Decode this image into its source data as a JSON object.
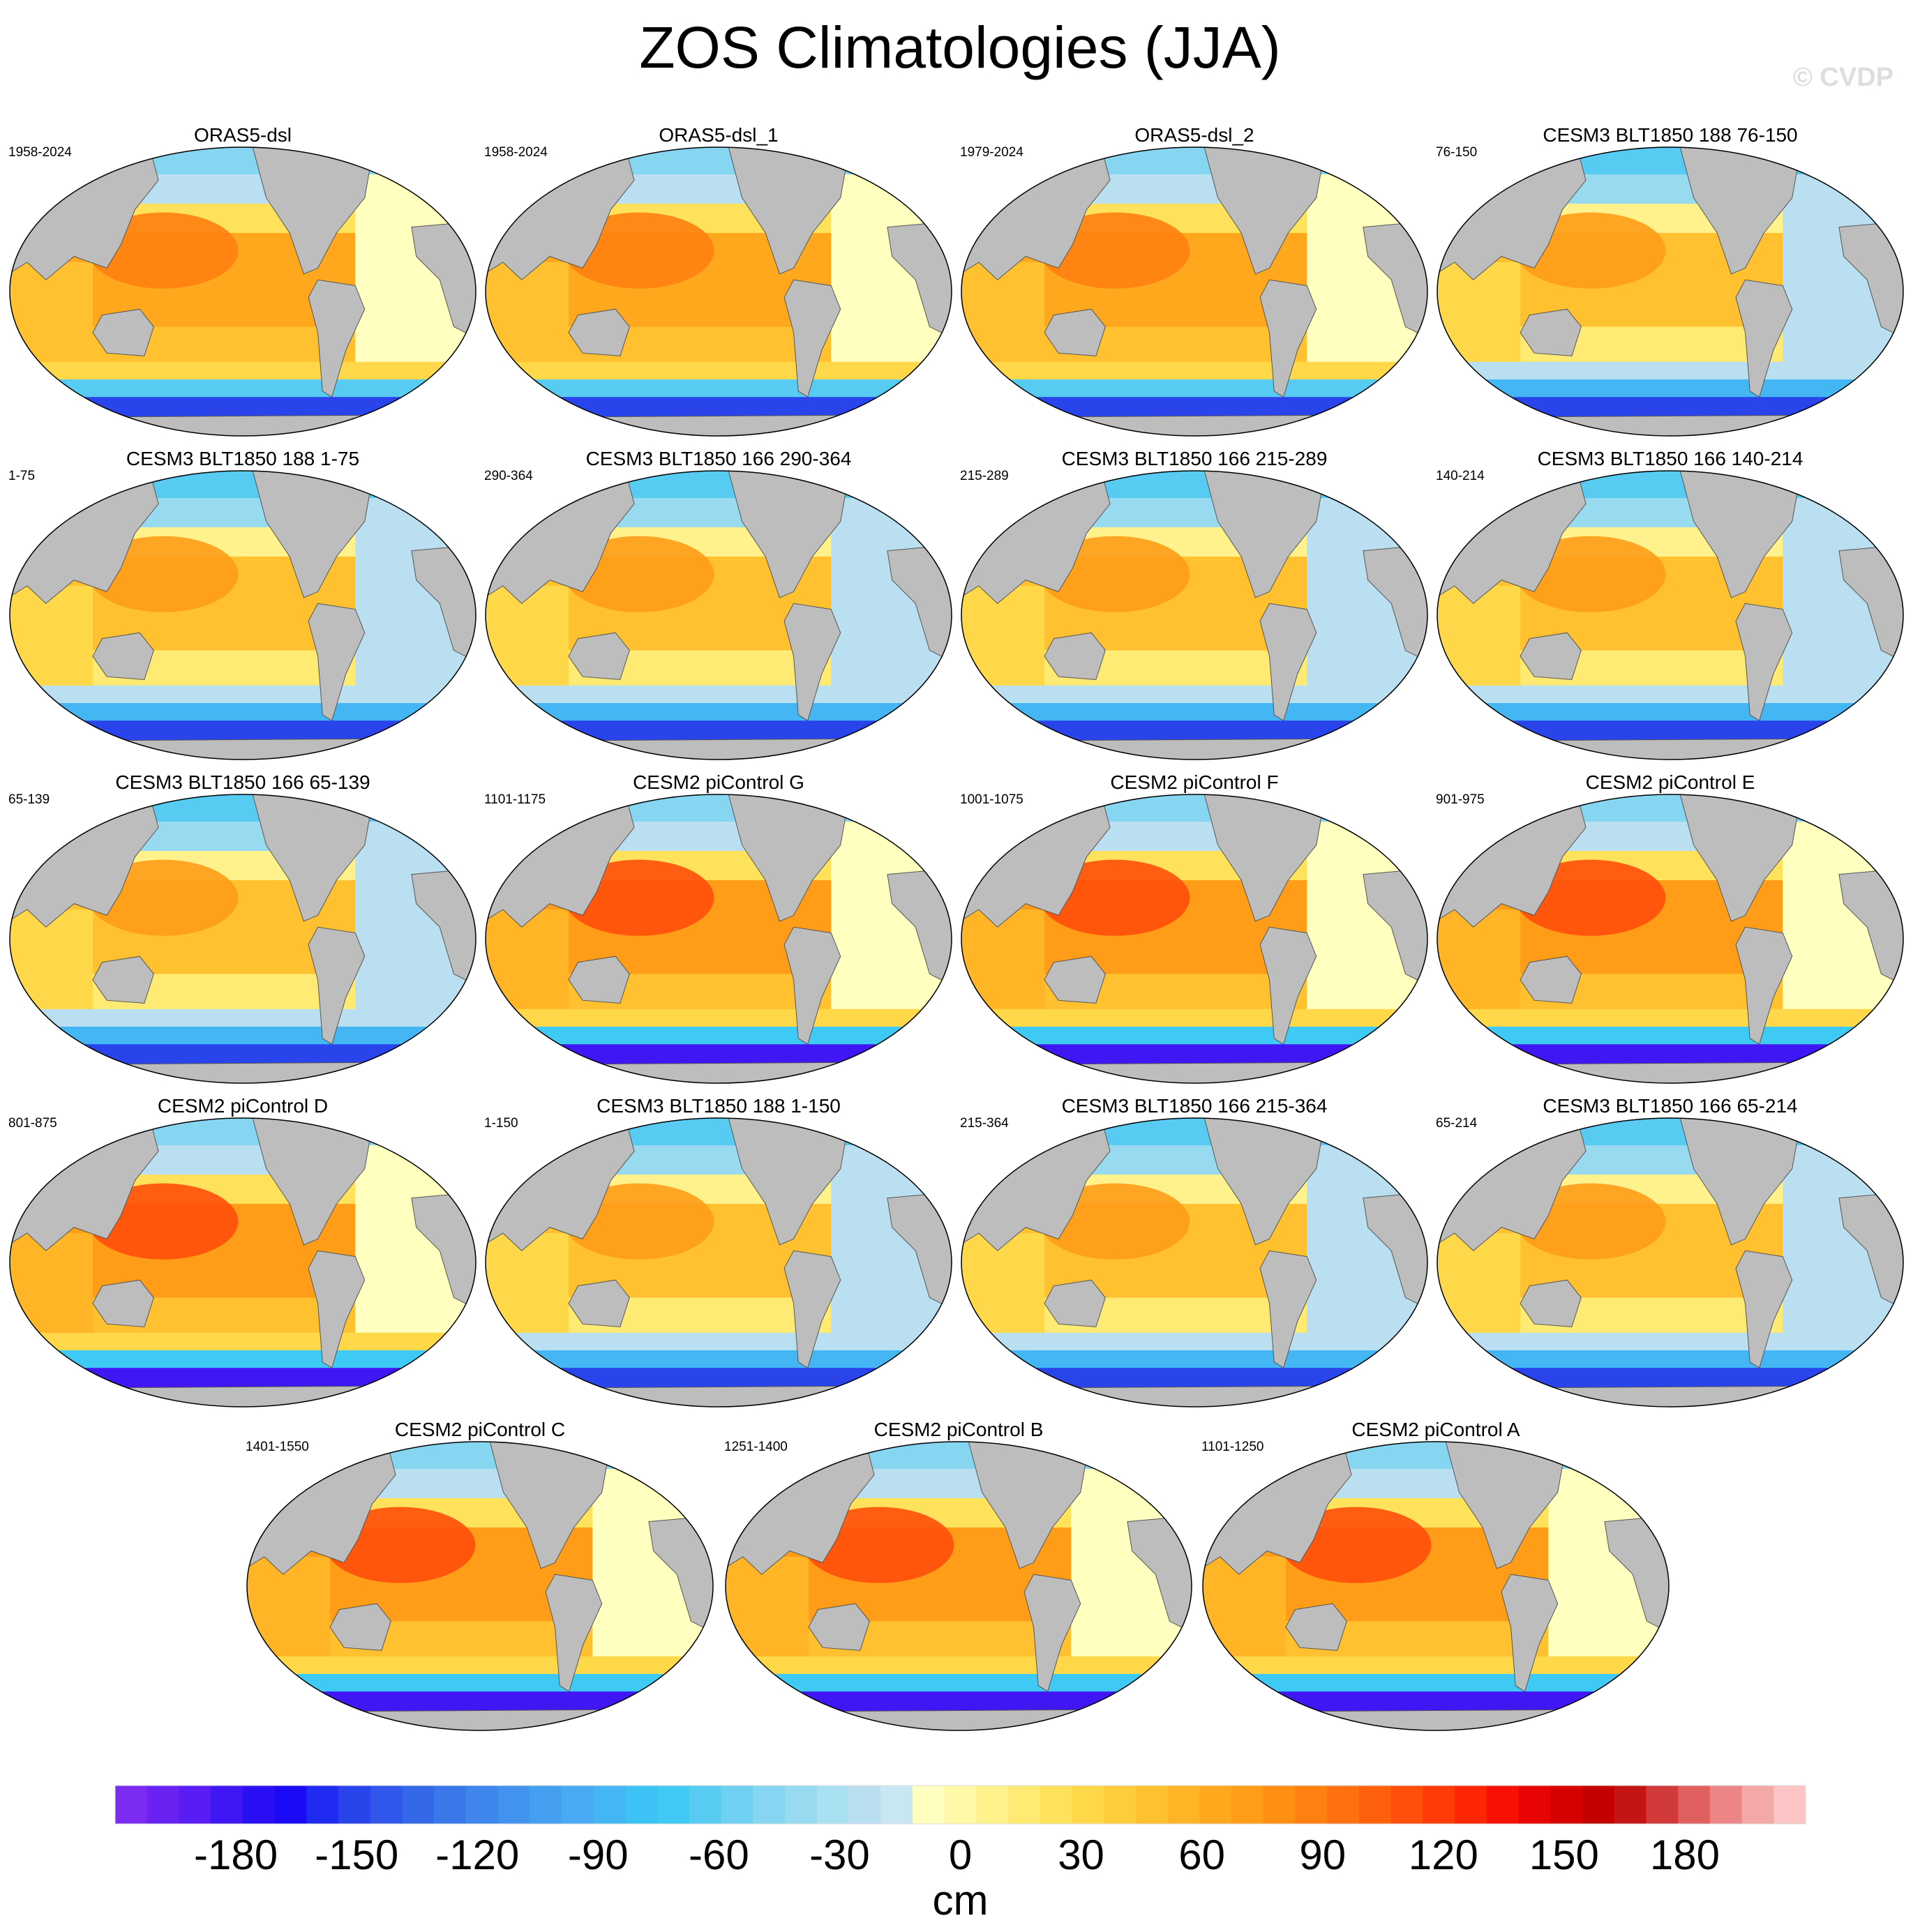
{
  "title": "ZOS Climatologies (JJA)",
  "watermark": "© CVDP",
  "panels": [
    {
      "title": "ORAS5-dsl",
      "years": "1958-2024",
      "variant": "obs"
    },
    {
      "title": "ORAS5-dsl_1",
      "years": "1958-2024",
      "variant": "obs"
    },
    {
      "title": "ORAS5-dsl_2",
      "years": "1979-2024",
      "variant": "obs"
    },
    {
      "title": "CESM3 BLT1850 188 76-150",
      "years": "76-150",
      "variant": "cesm3"
    },
    {
      "title": "CESM3 BLT1850 188 1-75",
      "years": "1-75",
      "variant": "cesm3"
    },
    {
      "title": "CESM3 BLT1850 166 290-364",
      "years": "290-364",
      "variant": "cesm3"
    },
    {
      "title": "CESM3 BLT1850 166 215-289",
      "years": "215-289",
      "variant": "cesm3"
    },
    {
      "title": "CESM3 BLT1850 166 140-214",
      "years": "140-214",
      "variant": "cesm3"
    },
    {
      "title": "CESM3 BLT1850 166 65-139",
      "years": "65-139",
      "variant": "cesm3"
    },
    {
      "title": "CESM2 piControl G",
      "years": "1101-1175",
      "variant": "cesm2"
    },
    {
      "title": "CESM2 piControl F",
      "years": "1001-1075",
      "variant": "cesm2"
    },
    {
      "title": "CESM2 piControl E",
      "years": "901-975",
      "variant": "cesm2"
    },
    {
      "title": "CESM2 piControl D",
      "years": "801-875",
      "variant": "cesm2"
    },
    {
      "title": "CESM3 BLT1850 188 1-150",
      "years": "1-150",
      "variant": "cesm3"
    },
    {
      "title": "CESM3 BLT1850 166 215-364",
      "years": "215-364",
      "variant": "cesm3"
    },
    {
      "title": "CESM3 BLT1850 166 65-214",
      "years": "65-214",
      "variant": "cesm3"
    },
    {
      "title": "CESM2 piControl C",
      "years": "1401-1550",
      "variant": "cesm2"
    },
    {
      "title": "CESM2 piControl B",
      "years": "1251-1400",
      "variant": "cesm2"
    },
    {
      "title": "CESM2 piControl A",
      "years": "1101-1250",
      "variant": "cesm2"
    }
  ],
  "colorbar": {
    "unit": "cm",
    "min": -210,
    "max": 210,
    "ticks": [
      -180,
      -150,
      -120,
      -90,
      -60,
      -30,
      0,
      30,
      60,
      90,
      120,
      150,
      180
    ],
    "tick_labels": [
      "-180",
      "-150",
      "-120",
      "-90",
      "-60",
      "-30",
      "0",
      "30",
      "60",
      "90",
      "120",
      "150",
      "180"
    ],
    "colors": [
      "#7b2cf0",
      "#6a22f2",
      "#5a1cf4",
      "#4016f4",
      "#2a0ff5",
      "#1a0af6",
      "#1f2bf0",
      "#2a44ec",
      "#3057ea",
      "#3468e8",
      "#3a78ea",
      "#3e86ec",
      "#4293ee",
      "#459ff0",
      "#47aaf2",
      "#44b6f4",
      "#3dc2f6",
      "#3ecaf5",
      "#58cbf2",
      "#6fd0f1",
      "#86d6f1",
      "#98dbf1",
      "#a9e0f2",
      "#badff1",
      "#c9e6f3",
      "#ffffc0",
      "#fff8a6",
      "#fff28c",
      "#ffeb74",
      "#ffe25c",
      "#ffd84a",
      "#ffcd3c",
      "#ffc130",
      "#ffb526",
      "#ffa81e",
      "#ff9c18",
      "#ff8e14",
      "#ff7f10",
      "#ff700e",
      "#ff600c",
      "#ff4f0a",
      "#ff3c08",
      "#ff2606",
      "#f81004",
      "#e80404",
      "#d60000",
      "#c40000",
      "#c41414",
      "#d23a3a",
      "#e06060",
      "#ec8686",
      "#f5a8a8",
      "#fcc4c4"
    ]
  },
  "chart_data": {
    "type": "heatmap",
    "title": "ZOS Climatologies (JJA)",
    "variable": "ZOS (sea surface height)",
    "season": "JJA",
    "units": "cm",
    "projection": "Robinson, Pacific-centered",
    "color_range": [
      -210,
      210
    ],
    "colorbar_ticks": [
      -180,
      -150,
      -120,
      -90,
      -60,
      -30,
      0,
      30,
      60,
      90,
      120,
      150,
      180
    ],
    "approx_regional_values_cm": {
      "obs": {
        "west_pacific_warm_pool": 90,
        "central_tropical_pacific": 60,
        "indian_ocean": 50,
        "north_atlantic": -10,
        "subpolar_north_pacific": -20,
        "arctic": -50,
        "southern_ocean_40s": 30,
        "southern_ocean_60s": -150
      },
      "cesm3": {
        "west_pacific_warm_pool": 75,
        "central_tropical_pacific": 50,
        "indian_ocean": 30,
        "north_atlantic": -25,
        "subpolar_north_pacific": -40,
        "arctic": -60,
        "southern_ocean_40s": -20,
        "southern_ocean_60s": -150
      },
      "cesm2": {
        "west_pacific_warm_pool": 110,
        "central_tropical_pacific": 70,
        "indian_ocean": 55,
        "north_atlantic": -10,
        "subpolar_north_pacific": -20,
        "arctic": -50,
        "southern_ocean_40s": 30,
        "southern_ocean_60s": -180
      }
    }
  }
}
